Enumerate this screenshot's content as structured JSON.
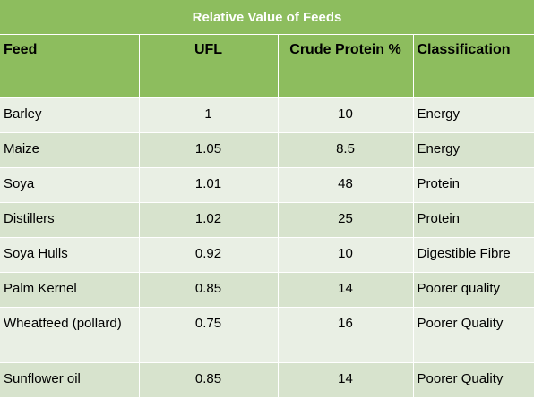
{
  "table": {
    "title": "Relative Value of Feeds",
    "headers": [
      "Feed",
      "UFL",
      "Crude Protein %",
      "Classification"
    ],
    "rows": [
      {
        "feed": "Barley",
        "ufl": "1",
        "protein": "10",
        "classification": "Energy"
      },
      {
        "feed": "Maize",
        "ufl": "1.05",
        "protein": "8.5",
        "classification": "Energy"
      },
      {
        "feed": "Soya",
        "ufl": "1.01",
        "protein": "48",
        "classification": "Protein"
      },
      {
        "feed": "Distillers",
        "ufl": "1.02",
        "protein": "25",
        "classification": "Protein"
      },
      {
        "feed": "Soya Hulls",
        "ufl": "0.92",
        "protein": "10",
        "classification": "Digestible Fibre"
      },
      {
        "feed": "Palm Kernel",
        "ufl": "0.85",
        "protein": "14",
        "classification": "Poorer quality"
      },
      {
        "feed": "Wheatfeed (pollard)",
        "ufl": "0.75",
        "protein": "16",
        "classification": "Poorer Quality"
      },
      {
        "feed": "Sunflower oil",
        "ufl": "0.85",
        "protein": "14",
        "classification": "Poorer Quality"
      }
    ]
  },
  "colors": {
    "header_bg": "#8dbd5e",
    "row_light": "#e9efe4",
    "row_dark": "#d7e3cd"
  }
}
